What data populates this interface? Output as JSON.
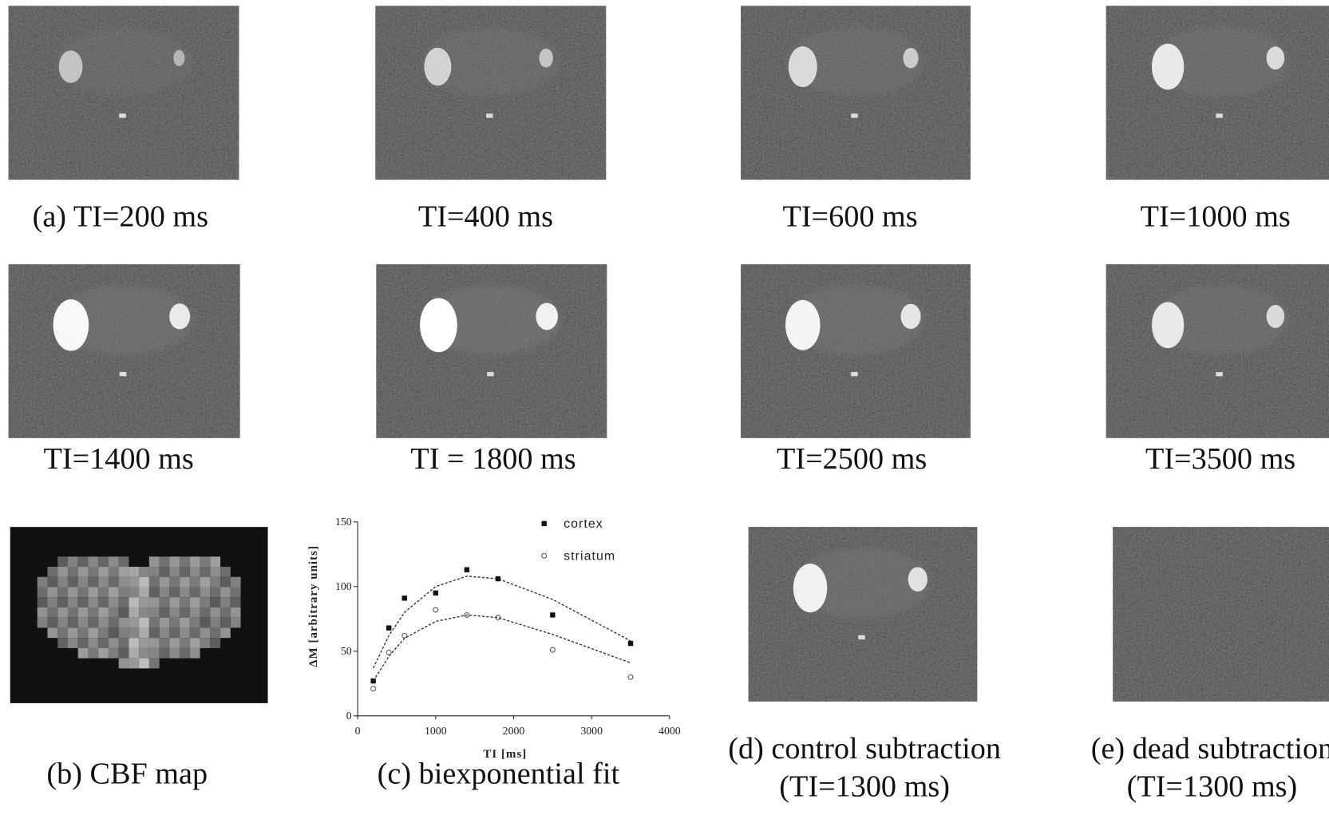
{
  "panels": [
    {
      "caption": [
        "(a) TI=200 ms"
      ]
    },
    {
      "caption": [
        "TI=400 ms"
      ]
    },
    {
      "caption": [
        "TI=600 ms"
      ]
    },
    {
      "caption": [
        "TI=1000 ms"
      ]
    },
    {
      "caption": [
        "TI=1400 ms"
      ]
    },
    {
      "caption": [
        "TI = 1800 ms"
      ]
    },
    {
      "caption": [
        "TI=2500 ms"
      ]
    },
    {
      "caption": [
        "TI=3500 ms"
      ]
    },
    {
      "caption": [
        "(b) CBF map"
      ]
    },
    {
      "caption": [
        "(c) biexponential fit"
      ]
    },
    {
      "caption": [
        "(d) control subtraction",
        "(TI=1300 ms)"
      ]
    },
    {
      "caption": [
        "(e) dead subtraction",
        "(TI=1300 ms)"
      ]
    }
  ],
  "chart_data": {
    "type": "scatter",
    "xlabel": "TI [ms]",
    "ylabel": "ΔM [arbitrary units]",
    "x": [
      200,
      400,
      600,
      1000,
      1400,
      1800,
      2500,
      3500
    ],
    "series": [
      {
        "name": "cortex",
        "marker": "filled-square",
        "color": "#111111",
        "values": [
          27,
          68,
          91,
          95,
          113,
          106,
          78,
          56
        ],
        "fit": [
          37,
          62,
          80,
          100,
          108,
          106,
          90,
          58
        ]
      },
      {
        "name": "striatum",
        "marker": "open-circle",
        "color": "#555555",
        "values": [
          21,
          49,
          62,
          82,
          78,
          76,
          51,
          30
        ],
        "fit": [
          27,
          46,
          60,
          73,
          78,
          76,
          63,
          41
        ]
      }
    ],
    "xlim": [
      0,
      4000
    ],
    "xticks": [
      0,
      1000,
      2000,
      3000,
      4000
    ],
    "ylim": [
      0,
      150
    ],
    "yticks": [
      0,
      50,
      100,
      150
    ],
    "legend": "upper right",
    "fit_line": "dashed"
  }
}
